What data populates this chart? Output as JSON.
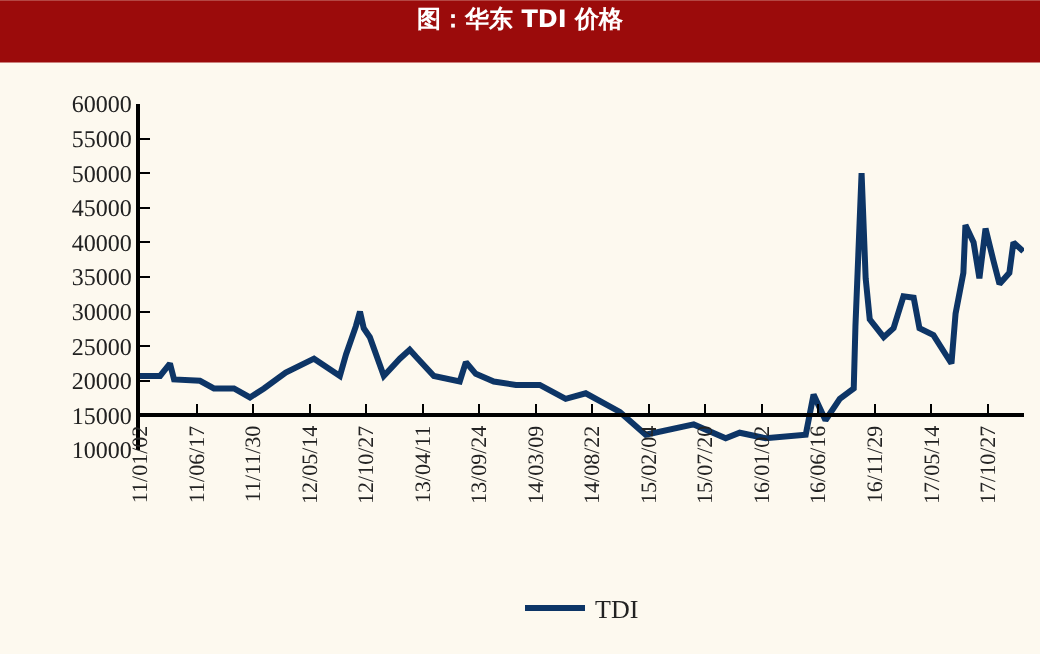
{
  "chart_data": {
    "type": "line",
    "title": "图：华东 TDI 价格",
    "x": [
      "2011-01-02",
      "2011-03-02",
      "2011-03-31",
      "2011-04-12",
      "2011-06-27",
      "2011-08-07",
      "2011-10-05",
      "2011-11-21",
      "2012-01-01",
      "2012-03-05",
      "2012-05-27",
      "2012-08-11",
      "2012-08-29",
      "2012-09-27",
      "2012-10-09",
      "2012-10-20",
      "2012-11-07",
      "2012-12-18",
      "2013-02-03",
      "2013-03-04",
      "2013-03-22",
      "2013-05-14",
      "2013-07-29",
      "2013-08-16",
      "2013-09-14",
      "2013-11-06",
      "2014-01-10",
      "2014-03-21",
      "2014-06-05",
      "2014-08-03",
      "2014-11-11",
      "2015-01-26",
      "2015-06-16",
      "2015-09-18",
      "2015-10-29",
      "2016-01-13",
      "2016-05-10",
      "2016-06-02",
      "2016-07-07",
      "2016-08-18",
      "2016-09-28",
      "2016-10-03",
      "2016-10-21",
      "2016-11-02",
      "2016-11-14",
      "2016-12-25",
      "2017-01-23",
      "2017-02-21",
      "2017-03-23",
      "2017-04-09",
      "2017-05-20",
      "2017-06-25",
      "2017-07-12",
      "2017-07-24",
      "2017-08-16",
      "2017-08-22",
      "2017-09-15",
      "2017-10-02",
      "2017-10-20",
      "2017-11-12",
      "2017-11-30",
      "2017-12-29",
      "2018-01-10",
      "2018-02-08"
    ],
    "series": [
      {
        "name": "TDI",
        "color": "#0d3566",
        "values": [
          20700,
          20700,
          22500,
          20200,
          20000,
          18900,
          18900,
          17600,
          18900,
          21200,
          23200,
          20700,
          23800,
          27900,
          30000,
          27600,
          26300,
          20700,
          23200,
          24500,
          23500,
          20700,
          19900,
          22700,
          21000,
          19900,
          19400,
          19400,
          17400,
          18200,
          15500,
          12200,
          13700,
          11700,
          12500,
          11700,
          12200,
          18000,
          14300,
          17400,
          18900,
          27900,
          50000,
          34800,
          28900,
          26300,
          27600,
          32200,
          32000,
          27600,
          26600,
          23800,
          22500,
          29700,
          35600,
          42500,
          40000,
          34800,
          42000,
          37400,
          34000,
          35600,
          40000,
          38700
        ]
      }
    ],
    "xlim": [
      "2011-01-02",
      "2018-02-10"
    ],
    "xticks": [
      {
        "value": "2011-01-02",
        "label": "11/01/02"
      },
      {
        "value": "2011-06-17",
        "label": "11/06/17"
      },
      {
        "value": "2011-11-30",
        "label": "11/11/30"
      },
      {
        "value": "2012-05-14",
        "label": "12/05/14"
      },
      {
        "value": "2012-10-27",
        "label": "12/10/27"
      },
      {
        "value": "2013-04-11",
        "label": "13/04/11"
      },
      {
        "value": "2013-09-24",
        "label": "13/09/24"
      },
      {
        "value": "2014-03-09",
        "label": "14/03/09"
      },
      {
        "value": "2014-08-22",
        "label": "14/08/22"
      },
      {
        "value": "2015-02-04",
        "label": "15/02/04"
      },
      {
        "value": "2015-07-20",
        "label": "15/07/20"
      },
      {
        "value": "2016-01-02",
        "label": "16/01/02"
      },
      {
        "value": "2016-06-16",
        "label": "16/06/16"
      },
      {
        "value": "2016-11-29",
        "label": "16/11/29"
      },
      {
        "value": "2017-05-14",
        "label": "17/05/14"
      },
      {
        "value": "2017-10-27",
        "label": "17/10/27"
      }
    ],
    "ylim": [
      10000,
      60000
    ],
    "yticks": [
      10000,
      15000,
      20000,
      25000,
      30000,
      35000,
      40000,
      45000,
      50000,
      55000,
      60000
    ],
    "grid": false,
    "legend": "bottom",
    "marker": "none",
    "line_style": "solid"
  }
}
